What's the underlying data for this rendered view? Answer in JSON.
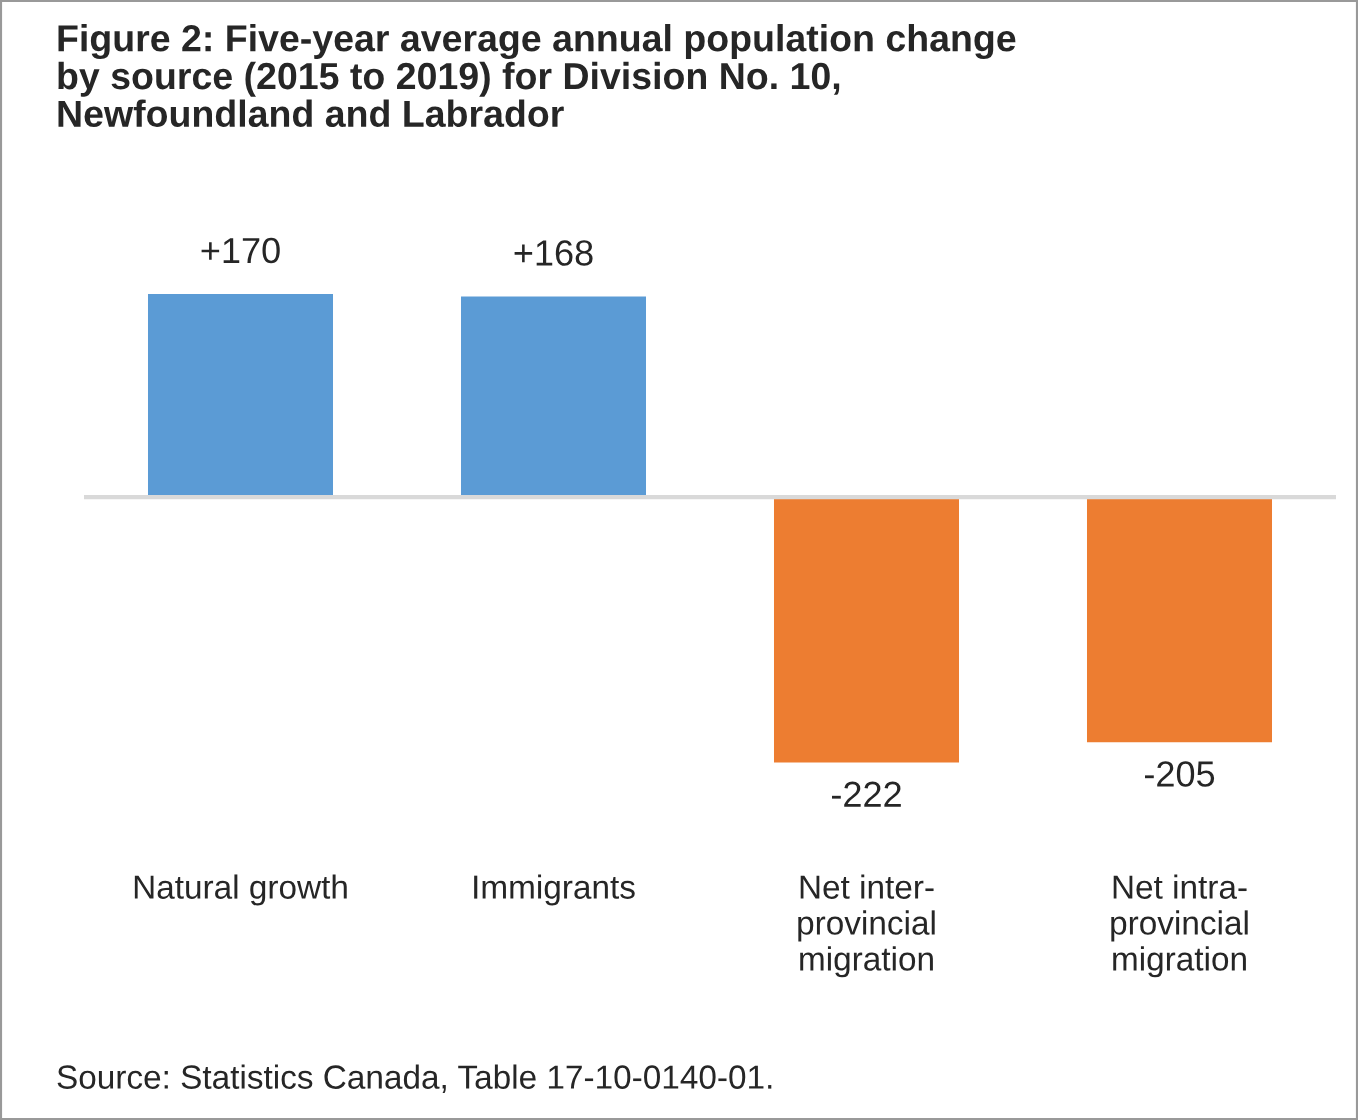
{
  "chart_data": {
    "type": "bar",
    "title": "Figure 2: Five-year average annual population change\nby source (2015 to 2019) for Division No. 10,\nNewfoundland and Labrador",
    "categories": [
      "Natural growth",
      "Immigrants",
      "Net inter-\nprovincial\nmigration",
      "Net intra-\nprovincial\nmigration"
    ],
    "values": [
      170,
      168,
      -222,
      -205
    ],
    "value_labels": [
      "+170",
      "+168",
      "-222",
      "-205"
    ],
    "colors": [
      "#5b9bd5",
      "#5b9bd5",
      "#ed7d31",
      "#ed7d31"
    ],
    "grid": false,
    "legend": false,
    "annotations": [
      "Source: Statistics Canada, Table 17-10-0140-01."
    ]
  }
}
